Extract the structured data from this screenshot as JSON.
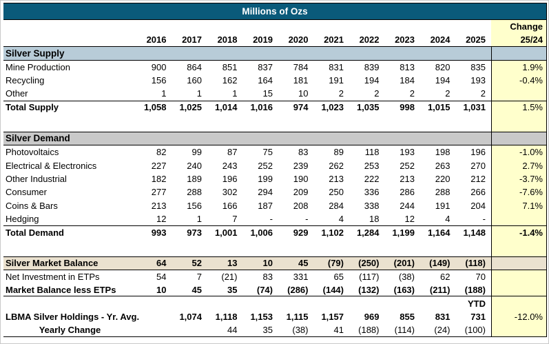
{
  "title": "Millions of Ozs",
  "header": {
    "change_line1": "Change",
    "change_line2": "25/24",
    "years": [
      "2016",
      "2017",
      "2018",
      "2019",
      "2020",
      "2021",
      "2022",
      "2023",
      "2024",
      "2025"
    ]
  },
  "colors": {
    "title_bg": "#0a5a7a",
    "supply_band": "#b8ccd8",
    "demand_band": "#c9c9c9",
    "balance_band": "#eae1cf",
    "change_column": "#ffffcc"
  },
  "table": {
    "rows": [
      {
        "label": "Silver Supply",
        "section": true,
        "band": "supply",
        "labelBold": true
      },
      {
        "label": "Mine Production",
        "values": [
          "900",
          "864",
          "851",
          "837",
          "784",
          "831",
          "839",
          "813",
          "820",
          "835"
        ],
        "change": "1.9%"
      },
      {
        "label": "Recycling",
        "values": [
          "156",
          "160",
          "162",
          "164",
          "181",
          "191",
          "194",
          "184",
          "194",
          "193"
        ],
        "change": "-0.4%"
      },
      {
        "label": "Other",
        "values": [
          "1",
          "1",
          "1",
          "15",
          "10",
          "2",
          "2",
          "2",
          "2",
          "2"
        ],
        "change": ""
      },
      {
        "label": "Total Supply",
        "values": [
          "1,058",
          "1,025",
          "1,014",
          "1,016",
          "974",
          "1,023",
          "1,035",
          "998",
          "1,015",
          "1,031"
        ],
        "change": "1.5%",
        "labelBold": true,
        "valuesBold": true,
        "borderTop": true
      },
      {
        "spacer": true
      },
      {
        "label": "Silver Demand",
        "section": true,
        "band": "demand",
        "labelBold": true
      },
      {
        "label": "Photovoltaics",
        "values": [
          "82",
          "99",
          "87",
          "75",
          "83",
          "89",
          "118",
          "193",
          "198",
          "196"
        ],
        "change": "-1.0%"
      },
      {
        "label": "Electrical & Electronics",
        "values": [
          "227",
          "240",
          "243",
          "252",
          "239",
          "262",
          "253",
          "252",
          "263",
          "270"
        ],
        "change": "2.7%"
      },
      {
        "label": "Other Industrial",
        "values": [
          "182",
          "189",
          "196",
          "199",
          "190",
          "213",
          "222",
          "213",
          "220",
          "212"
        ],
        "change": "-3.7%"
      },
      {
        "label": "Consumer",
        "values": [
          "277",
          "288",
          "302",
          "294",
          "209",
          "250",
          "336",
          "286",
          "288",
          "266"
        ],
        "change": "-7.6%"
      },
      {
        "label": "Coins & Bars",
        "values": [
          "213",
          "156",
          "166",
          "187",
          "208",
          "284",
          "338",
          "244",
          "191",
          "204"
        ],
        "change": "7.1%"
      },
      {
        "label": "Hedging",
        "values": [
          "12",
          "1",
          "7",
          "-",
          "-",
          "4",
          "18",
          "12",
          "4",
          "-"
        ],
        "change": ""
      },
      {
        "label": "Total Demand",
        "values": [
          "993",
          "973",
          "1,001",
          "1,006",
          "929",
          "1,102",
          "1,284",
          "1,199",
          "1,164",
          "1,148"
        ],
        "change": "-1.4%",
        "labelBold": true,
        "valuesBold": true,
        "changeBold": true,
        "borderTop": true
      },
      {
        "spacer": true
      },
      {
        "label": "Silver Market Balance",
        "band": "balance",
        "values": [
          "64",
          "52",
          "13",
          "10",
          "45",
          "(79)",
          "(250)",
          "(201)",
          "(149)",
          "(118)"
        ],
        "change": "",
        "labelBold": true,
        "valuesBold": true,
        "borderTop": true,
        "borderBottom": true
      },
      {
        "label": "Net Investment in ETPs",
        "values": [
          "54",
          "7",
          "(21)",
          "83",
          "331",
          "65",
          "(117)",
          "(38)",
          "62",
          "70"
        ],
        "change": ""
      },
      {
        "label": "Market Balance less ETPs",
        "values": [
          "10",
          "45",
          "35",
          "(74)",
          "(286)",
          "(144)",
          "(132)",
          "(163)",
          "(211)",
          "(188)"
        ],
        "change": "",
        "labelBold": true,
        "valuesBold": true,
        "borderBottom": true
      },
      {
        "label": "",
        "values": [
          "",
          "",
          "",
          "",
          "",
          "",
          "",
          "",
          "",
          "YTD"
        ],
        "change": "",
        "valuesBold": true
      },
      {
        "label": "LBMA Silver Holdings - Yr. Avg.",
        "values": [
          "",
          "1,074",
          "1,118",
          "1,153",
          "1,115",
          "1,157",
          "969",
          "855",
          "831",
          "731"
        ],
        "change": "-12.0%",
        "labelBold": true,
        "valuesBold": true
      },
      {
        "label": "Yearly Change",
        "values": [
          "",
          "",
          "44",
          "35",
          "(38)",
          "41",
          "(188)",
          "(114)",
          "(24)",
          "(100)"
        ],
        "change": "",
        "labelBold": true,
        "labelCenter": true,
        "borderBottom": true
      }
    ]
  },
  "chart_data": {
    "type": "table",
    "title": "Millions of Ozs",
    "categories": [
      "2016",
      "2017",
      "2018",
      "2019",
      "2020",
      "2021",
      "2022",
      "2023",
      "2024",
      "2025"
    ],
    "change_column_label": "Change 25/24",
    "series": [
      {
        "name": "Mine Production",
        "group": "Silver Supply",
        "values": [
          900,
          864,
          851,
          837,
          784,
          831,
          839,
          813,
          820,
          835
        ],
        "change_25_24": "1.9%"
      },
      {
        "name": "Recycling",
        "group": "Silver Supply",
        "values": [
          156,
          160,
          162,
          164,
          181,
          191,
          194,
          184,
          194,
          193
        ],
        "change_25_24": "-0.4%"
      },
      {
        "name": "Other",
        "group": "Silver Supply",
        "values": [
          1,
          1,
          1,
          15,
          10,
          2,
          2,
          2,
          2,
          2
        ],
        "change_25_24": null
      },
      {
        "name": "Total Supply",
        "group": "Silver Supply",
        "values": [
          1058,
          1025,
          1014,
          1016,
          974,
          1023,
          1035,
          998,
          1015,
          1031
        ],
        "change_25_24": "1.5%"
      },
      {
        "name": "Photovoltaics",
        "group": "Silver Demand",
        "values": [
          82,
          99,
          87,
          75,
          83,
          89,
          118,
          193,
          198,
          196
        ],
        "change_25_24": "-1.0%"
      },
      {
        "name": "Electrical & Electronics",
        "group": "Silver Demand",
        "values": [
          227,
          240,
          243,
          252,
          239,
          262,
          253,
          252,
          263,
          270
        ],
        "change_25_24": "2.7%"
      },
      {
        "name": "Other Industrial",
        "group": "Silver Demand",
        "values": [
          182,
          189,
          196,
          199,
          190,
          213,
          222,
          213,
          220,
          212
        ],
        "change_25_24": "-3.7%"
      },
      {
        "name": "Consumer",
        "group": "Silver Demand",
        "values": [
          277,
          288,
          302,
          294,
          209,
          250,
          336,
          286,
          288,
          266
        ],
        "change_25_24": "-7.6%"
      },
      {
        "name": "Coins & Bars",
        "group": "Silver Demand",
        "values": [
          213,
          156,
          166,
          187,
          208,
          284,
          338,
          244,
          191,
          204
        ],
        "change_25_24": "7.1%"
      },
      {
        "name": "Hedging",
        "group": "Silver Demand",
        "values": [
          12,
          1,
          7,
          null,
          null,
          4,
          18,
          12,
          4,
          null
        ],
        "change_25_24": null
      },
      {
        "name": "Total Demand",
        "group": "Silver Demand",
        "values": [
          993,
          973,
          1001,
          1006,
          929,
          1102,
          1284,
          1199,
          1164,
          1148
        ],
        "change_25_24": "-1.4%"
      },
      {
        "name": "Silver Market Balance",
        "group": "Balance",
        "values": [
          64,
          52,
          13,
          10,
          45,
          -79,
          -250,
          -201,
          -149,
          -118
        ],
        "change_25_24": null
      },
      {
        "name": "Net Investment in ETPs",
        "group": "Balance",
        "values": [
          54,
          7,
          -21,
          83,
          331,
          65,
          -117,
          -38,
          62,
          70
        ],
        "change_25_24": null
      },
      {
        "name": "Market Balance less ETPs",
        "group": "Balance",
        "values": [
          10,
          45,
          35,
          -74,
          -286,
          -144,
          -132,
          -163,
          -211,
          -188
        ],
        "change_25_24": null
      },
      {
        "name": "LBMA Silver Holdings - Yr. Avg.",
        "group": "Holdings",
        "values": [
          null,
          1074,
          1118,
          1153,
          1115,
          1157,
          969,
          855,
          831,
          731
        ],
        "change_25_24": "-12.0%",
        "note": "2025 value is YTD"
      },
      {
        "name": "Yearly Change",
        "group": "Holdings",
        "values": [
          null,
          null,
          44,
          35,
          -38,
          41,
          -188,
          -114,
          -24,
          -100
        ],
        "change_25_24": null
      }
    ]
  }
}
